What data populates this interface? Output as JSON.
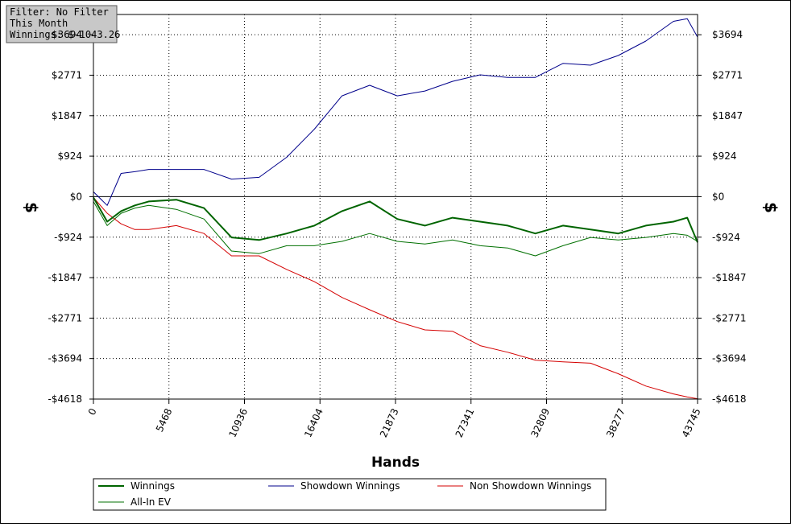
{
  "chart_data": {
    "type": "line",
    "annotations": [
      "Filter: No Filter",
      "This Month",
      "Winnings: $-1043.26"
    ],
    "x_label": "Hands",
    "y_label": "$",
    "x": [
      0,
      1000,
      2000,
      3000,
      4000,
      6000,
      8000,
      10000,
      12000,
      14000,
      16000,
      18000,
      20000,
      22000,
      24000,
      26000,
      28000,
      30000,
      32000,
      34000,
      36000,
      38000,
      40000,
      42000,
      43000,
      43745
    ],
    "series": [
      {
        "name": "Winnings",
        "color": "#006400",
        "width": 2,
        "values": [
          -20,
          -570,
          -330,
          -200,
          -110,
          -70,
          -260,
          -930,
          -990,
          -840,
          -660,
          -330,
          -110,
          -510,
          -660,
          -480,
          -570,
          -660,
          -840,
          -660,
          -750,
          -840,
          -660,
          -570,
          -480,
          -1043
        ]
      },
      {
        "name": "Showdown Winnings",
        "color": "#00008b",
        "width": 1,
        "values": [
          110,
          -200,
          530,
          570,
          620,
          620,
          620,
          400,
          440,
          900,
          1540,
          2300,
          2540,
          2300,
          2410,
          2630,
          2780,
          2720,
          2720,
          3040,
          3000,
          3220,
          3550,
          4000,
          4060,
          3640
        ]
      },
      {
        "name": "Non Showdown Winnings",
        "color": "#d40000",
        "width": 1,
        "values": [
          -20,
          -380,
          -620,
          -750,
          -750,
          -660,
          -840,
          -1350,
          -1350,
          -1660,
          -1940,
          -2300,
          -2580,
          -2850,
          -3040,
          -3070,
          -3400,
          -3550,
          -3730,
          -3770,
          -3800,
          -4040,
          -4320,
          -4500,
          -4570,
          -4610
        ]
      },
      {
        "name": "All-In EV",
        "color": "#007000",
        "width": 1,
        "values": [
          -110,
          -660,
          -380,
          -260,
          -200,
          -290,
          -510,
          -1240,
          -1300,
          -1120,
          -1120,
          -1020,
          -840,
          -1020,
          -1080,
          -990,
          -1120,
          -1170,
          -1350,
          -1120,
          -930,
          -990,
          -930,
          -840,
          -880,
          -1020
        ]
      }
    ],
    "xlim": [
      0,
      43745
    ],
    "xticks": [
      0,
      5468,
      10936,
      16404,
      21873,
      27341,
      32809,
      38277,
      43745
    ],
    "ylim": [
      -4618,
      4156
    ],
    "yticks": [
      {
        "value": -4618,
        "label": "-$4618"
      },
      {
        "value": -3694,
        "label": "-$3694"
      },
      {
        "value": -2771,
        "label": "-$2771"
      },
      {
        "value": -1847,
        "label": "-$1847"
      },
      {
        "value": -924,
        "label": "-$924"
      },
      {
        "value": 0,
        "label": "$0"
      },
      {
        "value": 924,
        "label": "$924"
      },
      {
        "value": 1847,
        "label": "$1847"
      },
      {
        "value": 2771,
        "label": "$2771"
      },
      {
        "value": 3694,
        "label": "$3694"
      }
    ],
    "grid": true
  }
}
